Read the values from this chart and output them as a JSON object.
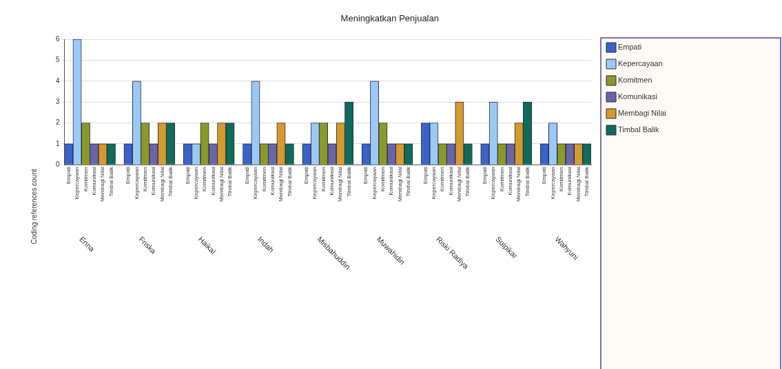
{
  "chart_data": {
    "type": "bar",
    "title": "Meningkatkan Penjualan",
    "ylabel": "Coding references count",
    "categories": [
      "Empati",
      "Kepercayaan",
      "Komitmen",
      "Komunikasi",
      "Membagi Nilai",
      "Timbal Balik",
      null,
      "Empati",
      "Kepercayaan",
      "Komitmen",
      "Komunikasi",
      "Membagi Nilai",
      "Timbal Balik",
      null,
      "Empati",
      "Kepercayaan",
      "Komitmen",
      "Komunikasi",
      "Membagi Nilai",
      "Timbal Balik",
      null,
      "Empati",
      "Kepercayaan",
      "Komitmen",
      "Komunikasi",
      "Membagi Nilai",
      "Timbal Balik",
      null,
      "Empati",
      "Kepercayaan",
      "Komitmen",
      "Komunikasi",
      "Membagi Nilai",
      "Timbal Balik",
      null,
      "Empati",
      "Kepercayaan",
      "Komitmen",
      "Komunikasi",
      "Membagi Nilai",
      "Timbal Balik",
      null,
      "Empati",
      "Kepercayaan",
      "Komitmen",
      "Komunikasi",
      "Membagi Nilai",
      "Timbal Balik",
      null,
      "Empati",
      "Kepercayaan",
      "Komitmen",
      "Komunikasi",
      "Membagi Nilai",
      "Timbal Balik",
      null,
      "Empati",
      "Kepercayaan",
      "Komitmen",
      "Komunikasi",
      "Membagi Nilai",
      "Timbal Balik"
    ],
    "series": [
      {
        "name": "Empati",
        "color": "#3a62c8",
        "values": [
          1,
          null,
          null,
          null,
          null,
          null,
          null,
          1,
          null,
          null,
          null,
          null,
          null,
          null,
          1,
          null,
          null,
          null,
          null,
          null,
          null,
          1,
          null,
          null,
          null,
          null,
          null,
          null,
          1,
          null,
          null,
          null,
          null,
          null,
          null,
          1,
          null,
          null,
          null,
          null,
          null,
          null,
          2,
          null,
          null,
          null,
          null,
          null,
          null,
          1,
          null,
          null,
          null,
          null,
          null,
          null,
          1,
          null,
          null,
          null,
          null,
          null
        ]
      },
      {
        "name": "Kepercayaan",
        "color": "#9cc8f5",
        "values": [
          null,
          6,
          null,
          null,
          null,
          null,
          null,
          null,
          4,
          null,
          null,
          null,
          null,
          null,
          null,
          1,
          null,
          null,
          null,
          null,
          null,
          null,
          4,
          null,
          null,
          null,
          null,
          null,
          null,
          2,
          null,
          null,
          null,
          null,
          null,
          null,
          4,
          null,
          null,
          null,
          null,
          null,
          null,
          2,
          null,
          null,
          null,
          null,
          null,
          null,
          3,
          null,
          null,
          null,
          null,
          null,
          null,
          2,
          null,
          null,
          null,
          null
        ]
      },
      {
        "name": "Komitmen",
        "color": "#8a9a2a",
        "values": [
          null,
          null,
          2,
          null,
          null,
          null,
          null,
          null,
          null,
          2,
          null,
          null,
          null,
          null,
          null,
          null,
          2,
          null,
          null,
          null,
          null,
          null,
          null,
          1,
          null,
          null,
          null,
          null,
          null,
          null,
          2,
          null,
          null,
          null,
          null,
          null,
          null,
          2,
          null,
          null,
          null,
          null,
          null,
          null,
          1,
          null,
          null,
          null,
          null,
          null,
          null,
          1,
          null,
          null,
          null,
          null,
          null,
          null,
          1,
          null,
          null,
          null
        ]
      },
      {
        "name": "Komunikasi",
        "color": "#6a65a8",
        "values": [
          null,
          null,
          null,
          1,
          null,
          null,
          null,
          null,
          null,
          null,
          1,
          null,
          null,
          null,
          null,
          null,
          null,
          1,
          null,
          null,
          null,
          null,
          null,
          null,
          1,
          null,
          null,
          null,
          null,
          null,
          null,
          1,
          null,
          null,
          null,
          null,
          null,
          null,
          1,
          null,
          null,
          null,
          null,
          null,
          null,
          1,
          null,
          null,
          null,
          null,
          null,
          null,
          1,
          null,
          null,
          null,
          null,
          null,
          null,
          1,
          null,
          null
        ]
      },
      {
        "name": "Membagi Nilai",
        "color": "#d49a2e",
        "values": [
          null,
          null,
          null,
          null,
          1,
          null,
          null,
          null,
          null,
          null,
          null,
          2,
          null,
          null,
          null,
          null,
          null,
          null,
          2,
          null,
          null,
          null,
          null,
          null,
          null,
          2,
          null,
          null,
          null,
          null,
          null,
          null,
          2,
          null,
          null,
          null,
          null,
          null,
          null,
          1,
          null,
          null,
          null,
          null,
          null,
          null,
          3,
          null,
          null,
          null,
          null,
          null,
          null,
          2,
          null,
          null,
          null,
          null,
          null,
          null,
          1,
          null
        ]
      },
      {
        "name": "Timbal Balik",
        "color": "#0f6b5c",
        "values": [
          null,
          null,
          null,
          null,
          null,
          1,
          null,
          null,
          null,
          null,
          null,
          null,
          2,
          null,
          null,
          null,
          null,
          null,
          null,
          2,
          null,
          null,
          null,
          null,
          null,
          null,
          1,
          null,
          null,
          null,
          null,
          null,
          null,
          3,
          null,
          null,
          null,
          null,
          null,
          null,
          1,
          null,
          null,
          null,
          null,
          null,
          null,
          1,
          null,
          null,
          null,
          null,
          null,
          null,
          3,
          null,
          null,
          null,
          null,
          null,
          null,
          1
        ]
      }
    ],
    "annotations": [
      "Enna",
      "Friska",
      "Haikal",
      "Indah",
      "Misbahuddin",
      "Muwahidin",
      "Riski Radiya",
      "Sulpikar",
      "Wahyuni"
    ],
    "ylim": [
      0,
      6
    ],
    "yticks": [
      0,
      1,
      2,
      3,
      4,
      5,
      6
    ],
    "grid": "y",
    "legend": "right"
  }
}
